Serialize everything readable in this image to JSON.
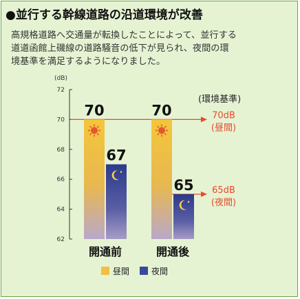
{
  "heading": "●並行する幹線道路の沿道環境が改善",
  "description": "高規格道路へ交通量が転換したことによって、並行する\n道道函館上磯線の道路騒音の低下が見られ、夜間の環\n境基準を満足するようになりました。",
  "colors": {
    "background": "#e6f3d3",
    "border": "#6aa640",
    "day_bar": "#f0c040",
    "night_bar": "#3a4a9a",
    "standard": "#e84a2a"
  },
  "chart_data": {
    "type": "bar",
    "unit": "(dB)",
    "categories": [
      "開通前",
      "開通後"
    ],
    "series": [
      {
        "name": "昼間",
        "values": [
          70,
          70
        ],
        "icon": "sun-icon"
      },
      {
        "name": "夜間",
        "values": [
          67,
          65
        ],
        "icon": "moon-icon"
      }
    ],
    "value_labels": [
      [
        "70",
        "67"
      ],
      [
        "70",
        "65"
      ]
    ],
    "ylim": [
      62,
      72
    ],
    "yticks": [
      "72",
      "70",
      "68",
      "66",
      "64",
      "62"
    ],
    "standards_title": "(環境基準)",
    "standards": [
      {
        "value": 70,
        "value_label": "70dB",
        "period_label": "(昼間)"
      },
      {
        "value": 65,
        "value_label": "65dB",
        "period_label": "(夜間)"
      }
    ],
    "legend": [
      {
        "label": "昼間",
        "color": "#f0c040"
      },
      {
        "label": "夜間",
        "color": "#3a4a9a"
      }
    ],
    "legend_position": "bottom"
  }
}
